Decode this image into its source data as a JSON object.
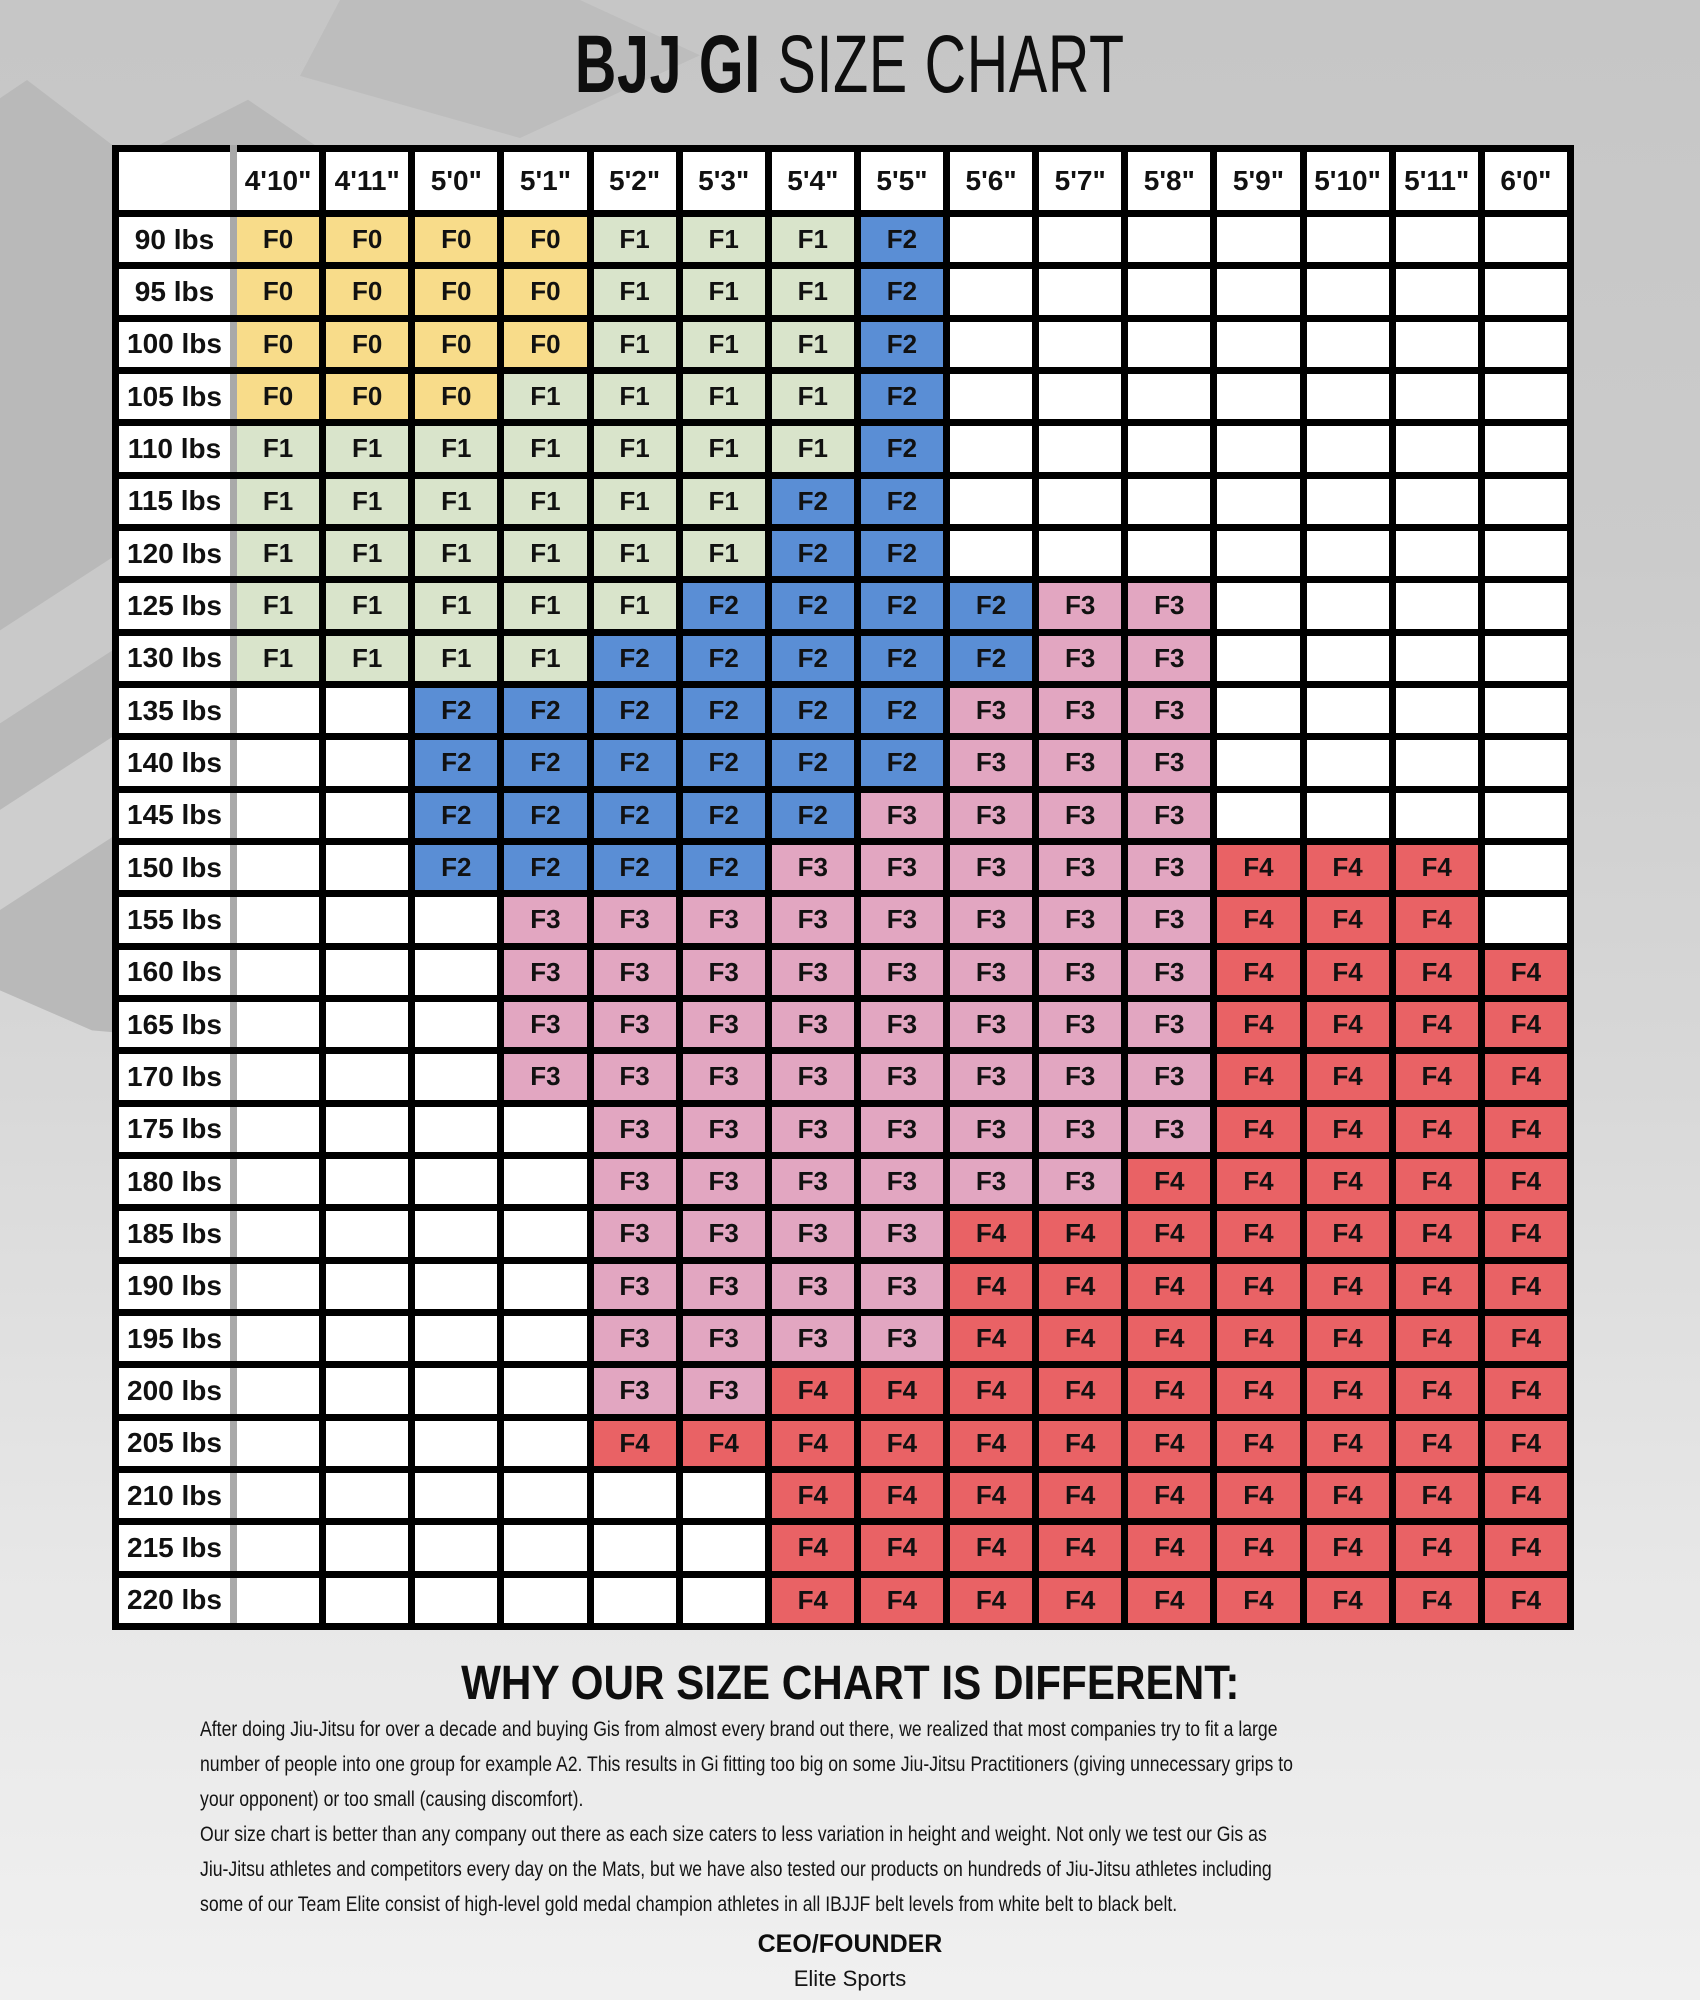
{
  "title": {
    "part1": "BJJ GI",
    "part2": "SIZE CHART"
  },
  "chart_data": {
    "type": "table",
    "title": "BJJ GI SIZE CHART",
    "columns": [
      "4'10\"",
      "4'11\"",
      "5'0\"",
      "5'1\"",
      "5'2\"",
      "5'3\"",
      "5'4\"",
      "5'5\"",
      "5'6\"",
      "5'7\"",
      "5'8\"",
      "5'9\"",
      "5'10\"",
      "5'11\"",
      "6'0\""
    ],
    "legend": {
      "F0": "#f8dc8a",
      "F1": "#d9e4cb",
      "F2": "#5a8ed5",
      "F3": "#e2a6c1",
      "F4": "#e96265"
    },
    "rows": [
      {
        "weight": "90 lbs",
        "cells": [
          "F0",
          "F0",
          "F0",
          "F0",
          "F1",
          "F1",
          "F1",
          "F2",
          "",
          "",
          "",
          "",
          "",
          "",
          ""
        ]
      },
      {
        "weight": "95 lbs",
        "cells": [
          "F0",
          "F0",
          "F0",
          "F0",
          "F1",
          "F1",
          "F1",
          "F2",
          "",
          "",
          "",
          "",
          "",
          "",
          ""
        ]
      },
      {
        "weight": "100 lbs",
        "cells": [
          "F0",
          "F0",
          "F0",
          "F0",
          "F1",
          "F1",
          "F1",
          "F2",
          "",
          "",
          "",
          "",
          "",
          "",
          ""
        ]
      },
      {
        "weight": "105 lbs",
        "cells": [
          "F0",
          "F0",
          "F0",
          "F1",
          "F1",
          "F1",
          "F1",
          "F2",
          "",
          "",
          "",
          "",
          "",
          "",
          ""
        ]
      },
      {
        "weight": "110 lbs",
        "cells": [
          "F1",
          "F1",
          "F1",
          "F1",
          "F1",
          "F1",
          "F1",
          "F2",
          "",
          "",
          "",
          "",
          "",
          "",
          ""
        ]
      },
      {
        "weight": "115 lbs",
        "cells": [
          "F1",
          "F1",
          "F1",
          "F1",
          "F1",
          "F1",
          "F2",
          "F2",
          "",
          "",
          "",
          "",
          "",
          "",
          ""
        ]
      },
      {
        "weight": "120 lbs",
        "cells": [
          "F1",
          "F1",
          "F1",
          "F1",
          "F1",
          "F1",
          "F2",
          "F2",
          "",
          "",
          "",
          "",
          "",
          "",
          ""
        ]
      },
      {
        "weight": "125 lbs",
        "cells": [
          "F1",
          "F1",
          "F1",
          "F1",
          "F1",
          "F2",
          "F2",
          "F2",
          "F2",
          "F3",
          "F3",
          "",
          "",
          "",
          ""
        ]
      },
      {
        "weight": "130 lbs",
        "cells": [
          "F1",
          "F1",
          "F1",
          "F1",
          "F2",
          "F2",
          "F2",
          "F2",
          "F2",
          "F3",
          "F3",
          "",
          "",
          "",
          ""
        ]
      },
      {
        "weight": "135 lbs",
        "cells": [
          "",
          "",
          "F2",
          "F2",
          "F2",
          "F2",
          "F2",
          "F2",
          "F3",
          "F3",
          "F3",
          "",
          "",
          "",
          ""
        ]
      },
      {
        "weight": "140 lbs",
        "cells": [
          "",
          "",
          "F2",
          "F2",
          "F2",
          "F2",
          "F2",
          "F2",
          "F3",
          "F3",
          "F3",
          "",
          "",
          "",
          ""
        ]
      },
      {
        "weight": "145 lbs",
        "cells": [
          "",
          "",
          "F2",
          "F2",
          "F2",
          "F2",
          "F2",
          "F3",
          "F3",
          "F3",
          "F3",
          "",
          "",
          "",
          ""
        ]
      },
      {
        "weight": "150 lbs",
        "cells": [
          "",
          "",
          "F2",
          "F2",
          "F2",
          "F2",
          "F3",
          "F3",
          "F3",
          "F3",
          "F3",
          "F4",
          "F4",
          "F4",
          ""
        ]
      },
      {
        "weight": "155 lbs",
        "cells": [
          "",
          "",
          "",
          "F3",
          "F3",
          "F3",
          "F3",
          "F3",
          "F3",
          "F3",
          "F3",
          "F4",
          "F4",
          "F4",
          ""
        ]
      },
      {
        "weight": "160 lbs",
        "cells": [
          "",
          "",
          "",
          "F3",
          "F3",
          "F3",
          "F3",
          "F3",
          "F3",
          "F3",
          "F3",
          "F4",
          "F4",
          "F4",
          "F4"
        ]
      },
      {
        "weight": "165 lbs",
        "cells": [
          "",
          "",
          "",
          "F3",
          "F3",
          "F3",
          "F3",
          "F3",
          "F3",
          "F3",
          "F3",
          "F4",
          "F4",
          "F4",
          "F4"
        ]
      },
      {
        "weight": "170 lbs",
        "cells": [
          "",
          "",
          "",
          "F3",
          "F3",
          "F3",
          "F3",
          "F3",
          "F3",
          "F3",
          "F3",
          "F4",
          "F4",
          "F4",
          "F4"
        ]
      },
      {
        "weight": "175 lbs",
        "cells": [
          "",
          "",
          "",
          "",
          "F3",
          "F3",
          "F3",
          "F3",
          "F3",
          "F3",
          "F3",
          "F4",
          "F4",
          "F4",
          "F4"
        ]
      },
      {
        "weight": "180 lbs",
        "cells": [
          "",
          "",
          "",
          "",
          "F3",
          "F3",
          "F3",
          "F3",
          "F3",
          "F3",
          "F4",
          "F4",
          "F4",
          "F4",
          "F4"
        ]
      },
      {
        "weight": "185 lbs",
        "cells": [
          "",
          "",
          "",
          "",
          "F3",
          "F3",
          "F3",
          "F3",
          "F4",
          "F4",
          "F4",
          "F4",
          "F4",
          "F4",
          "F4"
        ]
      },
      {
        "weight": "190 lbs",
        "cells": [
          "",
          "",
          "",
          "",
          "F3",
          "F3",
          "F3",
          "F3",
          "F4",
          "F4",
          "F4",
          "F4",
          "F4",
          "F4",
          "F4"
        ]
      },
      {
        "weight": "195 lbs",
        "cells": [
          "",
          "",
          "",
          "",
          "F3",
          "F3",
          "F3",
          "F3",
          "F4",
          "F4",
          "F4",
          "F4",
          "F4",
          "F4",
          "F4"
        ]
      },
      {
        "weight": "200 lbs",
        "cells": [
          "",
          "",
          "",
          "",
          "F3",
          "F3",
          "F4",
          "F4",
          "F4",
          "F4",
          "F4",
          "F4",
          "F4",
          "F4",
          "F4"
        ]
      },
      {
        "weight": "205 lbs",
        "cells": [
          "",
          "",
          "",
          "",
          "F4",
          "F4",
          "F4",
          "F4",
          "F4",
          "F4",
          "F4",
          "F4",
          "F4",
          "F4",
          "F4"
        ]
      },
      {
        "weight": "210 lbs",
        "cells": [
          "",
          "",
          "",
          "",
          "",
          "",
          "F4",
          "F4",
          "F4",
          "F4",
          "F4",
          "F4",
          "F4",
          "F4",
          "F4"
        ]
      },
      {
        "weight": "215 lbs",
        "cells": [
          "",
          "",
          "",
          "",
          "",
          "",
          "F4",
          "F4",
          "F4",
          "F4",
          "F4",
          "F4",
          "F4",
          "F4",
          "F4"
        ]
      },
      {
        "weight": "220 lbs",
        "cells": [
          "",
          "",
          "",
          "",
          "",
          "",
          "F4",
          "F4",
          "F4",
          "F4",
          "F4",
          "F4",
          "F4",
          "F4",
          "F4"
        ]
      }
    ]
  },
  "colors": {
    "table_border": "#000000",
    "label_divider": "#a9a9a9",
    "cell_background": "#ffffff",
    "background_top": "#c6c6c6",
    "background_bottom": "#f0f0f0"
  },
  "info": {
    "heading": "WHY OUR SIZE CHART IS DIFFERENT:",
    "lines": [
      "After doing Jiu-Jitsu for over a decade and buying Gis from almost every brand out there, we realized that most companies try to fit a large",
      "number of people into one group for example A2. This results in Gi fitting too big on some Jiu-Jitsu Practitioners (giving unnecessary grips to",
      "your opponent) or too small (causing discomfort).",
      "Our size chart is better than any company out there as each size caters to less variation in height and weight. Not only we test our Gis as",
      "Jiu-Jitsu athletes and competitors every day on the Mats, but we have also tested our products on hundreds of Jiu-Jitsu athletes including",
      "some of our Team Elite consist of high-level gold medal champion athletes in all IBJJF belt levels from white belt to black belt."
    ],
    "ceo_label": "CEO/FOUNDER",
    "company": "Elite Sports"
  }
}
